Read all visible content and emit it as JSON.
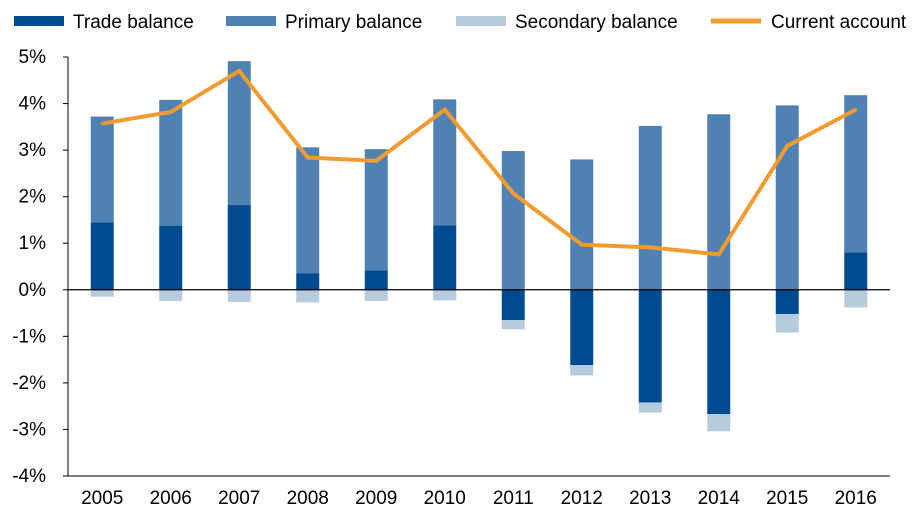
{
  "chart_data": {
    "type": "bar",
    "stacked": true,
    "categories": [
      "2005",
      "2006",
      "2007",
      "2008",
      "2009",
      "2010",
      "2011",
      "2012",
      "2013",
      "2014",
      "2015",
      "2016"
    ],
    "series": [
      {
        "name": "Trade balance",
        "kind": "bar",
        "color": "#004a8f",
        "values": [
          1.45,
          1.37,
          1.82,
          0.35,
          0.42,
          1.38,
          -0.65,
          -1.62,
          -2.42,
          -2.67,
          -0.52,
          0.8
        ]
      },
      {
        "name": "Primary balance",
        "kind": "bar",
        "color": "#4f81b3",
        "values": [
          2.27,
          2.71,
          3.09,
          2.71,
          2.6,
          2.71,
          2.98,
          2.8,
          3.52,
          3.77,
          3.96,
          3.38
        ]
      },
      {
        "name": "Secondary balance",
        "kind": "bar",
        "color": "#b6cbde",
        "values": [
          -0.15,
          -0.24,
          -0.26,
          -0.27,
          -0.24,
          -0.23,
          -0.2,
          -0.22,
          -0.22,
          -0.37,
          -0.4,
          -0.38
        ]
      },
      {
        "name": "Current account",
        "kind": "line",
        "color": "#f29b30",
        "values": [
          3.57,
          3.82,
          4.7,
          2.84,
          2.77,
          3.87,
          2.07,
          0.97,
          0.91,
          0.76,
          3.09,
          3.87
        ]
      }
    ],
    "ylim": [
      -4,
      5
    ],
    "yticks": [
      -4,
      -3,
      -2,
      -1,
      0,
      1,
      2,
      3,
      4,
      5
    ],
    "yticks_labels": [
      "-4%",
      "-3%",
      "-2%",
      "-1%",
      "0%",
      "1%",
      "2%",
      "3%",
      "4%",
      "5%"
    ],
    "grid": false,
    "legend_position": "top",
    "title": "",
    "xlabel": "",
    "ylabel": ""
  }
}
